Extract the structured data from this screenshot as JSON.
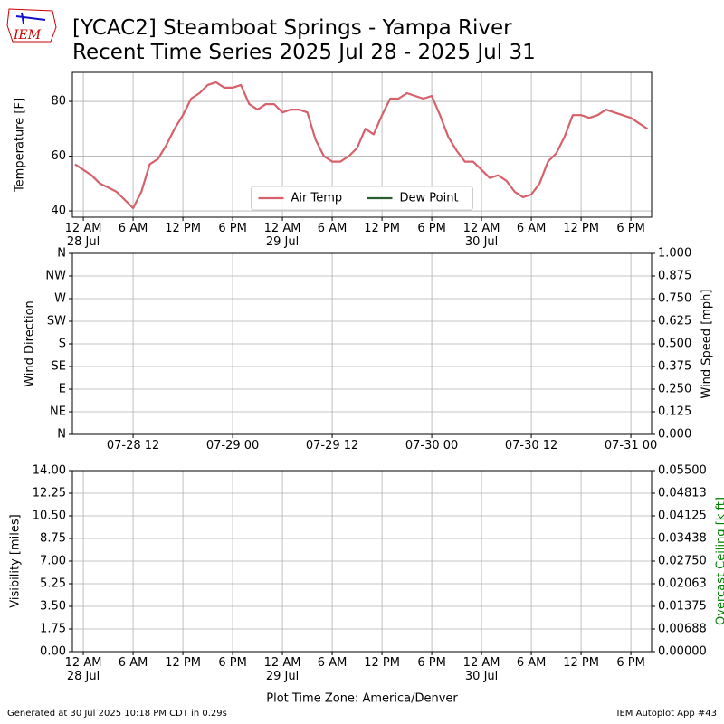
{
  "title": [
    "[YCAC2] Steamboat Springs - Yampa River",
    "Recent Time Series 2025 Jul 28 - 2025 Jul 31"
  ],
  "logo_text": "IEM",
  "footer_left": "Generated at 30 Jul 2025 10:18 PM CDT in 0.29s",
  "footer_right": "IEM Autoplot App #43",
  "chart_data": [
    {
      "type": "line",
      "ylabel": "Temperature [F]",
      "xlim": [
        "2025-07-27T22:41",
        "2025-07-30T20:30"
      ],
      "xticks": [
        {
          "value": "2025-07-28T00:00",
          "label": "12 AM\n28 Jul"
        },
        {
          "value": "2025-07-28T06:00",
          "label": "6 AM"
        },
        {
          "value": "2025-07-28T12:00",
          "label": "12 PM"
        },
        {
          "value": "2025-07-28T18:00",
          "label": "6 PM"
        },
        {
          "value": "2025-07-29T00:00",
          "label": "12 AM\n29 Jul"
        },
        {
          "value": "2025-07-29T06:00",
          "label": "6 AM"
        },
        {
          "value": "2025-07-29T12:00",
          "label": "12 PM"
        },
        {
          "value": "2025-07-29T18:00",
          "label": "6 PM"
        },
        {
          "value": "2025-07-30T00:00",
          "label": "12 AM\n30 Jul"
        },
        {
          "value": "2025-07-30T06:00",
          "label": "6 AM"
        },
        {
          "value": "2025-07-30T12:00",
          "label": "12 PM"
        },
        {
          "value": "2025-07-30T18:00",
          "label": "6 PM"
        }
      ],
      "ylim": [
        37.7,
        90.6
      ],
      "yticks": [
        40,
        60,
        80
      ],
      "grid": true,
      "legend": "lower center",
      "x": [
        "2025-07-27T23:00",
        "2025-07-28T00:00",
        "2025-07-28T01:00",
        "2025-07-28T02:00",
        "2025-07-28T03:00",
        "2025-07-28T04:00",
        "2025-07-28T05:00",
        "2025-07-28T06:00",
        "2025-07-28T07:00",
        "2025-07-28T08:00",
        "2025-07-28T09:00",
        "2025-07-28T10:00",
        "2025-07-28T11:00",
        "2025-07-28T12:00",
        "2025-07-28T13:00",
        "2025-07-28T14:00",
        "2025-07-28T15:00",
        "2025-07-28T16:00",
        "2025-07-28T17:00",
        "2025-07-28T18:00",
        "2025-07-28T19:00",
        "2025-07-28T20:00",
        "2025-07-28T21:00",
        "2025-07-28T22:00",
        "2025-07-28T23:00",
        "2025-07-29T00:00",
        "2025-07-29T01:00",
        "2025-07-29T02:00",
        "2025-07-29T03:00",
        "2025-07-29T04:00",
        "2025-07-29T05:00",
        "2025-07-29T06:00",
        "2025-07-29T07:00",
        "2025-07-29T08:00",
        "2025-07-29T09:00",
        "2025-07-29T10:00",
        "2025-07-29T11:00",
        "2025-07-29T12:00",
        "2025-07-29T13:00",
        "2025-07-29T14:00",
        "2025-07-29T15:00",
        "2025-07-29T16:00",
        "2025-07-29T17:00",
        "2025-07-29T18:00",
        "2025-07-29T19:00",
        "2025-07-29T20:00",
        "2025-07-29T21:00",
        "2025-07-29T22:00",
        "2025-07-29T23:00",
        "2025-07-30T00:00",
        "2025-07-30T01:00",
        "2025-07-30T02:00",
        "2025-07-30T03:00",
        "2025-07-30T04:00",
        "2025-07-30T05:00",
        "2025-07-30T06:00",
        "2025-07-30T07:00",
        "2025-07-30T08:00",
        "2025-07-30T09:00",
        "2025-07-30T10:00",
        "2025-07-30T11:00",
        "2025-07-30T12:00",
        "2025-07-30T13:00",
        "2025-07-30T14:00",
        "2025-07-30T15:00",
        "2025-07-30T16:00",
        "2025-07-30T17:00",
        "2025-07-30T18:00",
        "2025-07-30T19:00",
        "2025-07-30T20:00"
      ],
      "series": [
        {
          "name": "Air Temp",
          "color": "#d6616b",
          "values": [
            57,
            55,
            53,
            50,
            48.5,
            47,
            44,
            41,
            47,
            57,
            59,
            64,
            70,
            75,
            81,
            83,
            86,
            87,
            85,
            85,
            86,
            79,
            77,
            79,
            79,
            76,
            77,
            77,
            76,
            66,
            60,
            58,
            58,
            60,
            63,
            70,
            68,
            75,
            81,
            81,
            83,
            82,
            81,
            82,
            75,
            67,
            62,
            58,
            58,
            55,
            52,
            53,
            51,
            47,
            45,
            46,
            50,
            58,
            61,
            67,
            75,
            75,
            74,
            75,
            77,
            76,
            75,
            74,
            72,
            70
          ]
        },
        {
          "name": "Dew Point",
          "color": "#2e5e2e",
          "values": [
            null,
            null,
            null,
            null,
            null,
            null,
            null,
            null,
            null,
            null,
            null,
            null,
            null,
            null,
            null,
            null,
            null,
            null,
            null,
            null,
            null,
            null,
            null,
            null,
            null,
            null,
            null,
            null,
            null,
            null,
            null,
            null,
            null,
            null,
            null,
            null,
            null,
            null,
            null,
            null,
            null,
            null,
            null,
            null,
            null,
            null,
            null,
            null,
            null,
            null,
            null,
            null,
            null,
            null,
            null,
            null,
            null,
            null,
            null,
            null,
            null,
            null,
            null,
            null,
            null,
            null,
            null,
            null,
            null,
            null
          ]
        }
      ]
    },
    {
      "type": "scatter",
      "ylabel": "Wind Direction",
      "y2label": "Wind Speed [mph]",
      "xlim": [
        "2025-07-28T04:41",
        "2025-07-31T02:30"
      ],
      "xticks": [
        {
          "value": "2025-07-28T12:00",
          "label": "07-28 12"
        },
        {
          "value": "2025-07-29T00:00",
          "label": "07-29 00"
        },
        {
          "value": "2025-07-29T12:00",
          "label": "07-29 12"
        },
        {
          "value": "2025-07-30T00:00",
          "label": "07-30 00"
        },
        {
          "value": "2025-07-30T12:00",
          "label": "07-30 12"
        },
        {
          "value": "2025-07-31T00:00",
          "label": "07-31 00"
        }
      ],
      "ylim": [
        0,
        360
      ],
      "yticks": [
        {
          "value": 0,
          "label": "N"
        },
        {
          "value": 45,
          "label": "NE"
        },
        {
          "value": 90,
          "label": "E"
        },
        {
          "value": 135,
          "label": "SE"
        },
        {
          "value": 180,
          "label": "S"
        },
        {
          "value": 225,
          "label": "SW"
        },
        {
          "value": 270,
          "label": "W"
        },
        {
          "value": 315,
          "label": "NW"
        },
        {
          "value": 360,
          "label": "N"
        }
      ],
      "y2lim": [
        0,
        1
      ],
      "y2ticks": [
        {
          "value": 0,
          "label": "0.000"
        },
        0.125,
        {
          "value": 0.25,
          "label": "0.250"
        },
        0.375,
        {
          "value": 0.5,
          "label": "0.500"
        },
        0.625,
        {
          "value": 0.75,
          "label": "0.750"
        },
        0.875,
        {
          "value": 1,
          "label": "1.000"
        }
      ],
      "grid": true
    },
    {
      "type": "line",
      "ylabel": "Visibility [miles]",
      "y2label": "Overcast Ceiling [k ft]",
      "y2label_color": "#008000",
      "xlabel": "Plot Time Zone: America/Denver",
      "xlim": [
        "2025-07-27T22:41",
        "2025-07-30T20:30"
      ],
      "xticks": [
        {
          "value": "2025-07-28T00:00",
          "label": "12 AM\n28 Jul"
        },
        {
          "value": "2025-07-28T06:00",
          "label": "6 AM"
        },
        {
          "value": "2025-07-28T12:00",
          "label": "12 PM"
        },
        {
          "value": "2025-07-28T18:00",
          "label": "6 PM"
        },
        {
          "value": "2025-07-29T00:00",
          "label": "12 AM\n29 Jul"
        },
        {
          "value": "2025-07-29T06:00",
          "label": "6 AM"
        },
        {
          "value": "2025-07-29T12:00",
          "label": "12 PM"
        },
        {
          "value": "2025-07-29T18:00",
          "label": "6 PM"
        },
        {
          "value": "2025-07-30T00:00",
          "label": "12 AM\n30 Jul"
        },
        {
          "value": "2025-07-30T06:00",
          "label": "6 AM"
        },
        {
          "value": "2025-07-30T12:00",
          "label": "12 PM"
        },
        {
          "value": "2025-07-30T18:00",
          "label": "6 PM"
        }
      ],
      "ylim": [
        0,
        14
      ],
      "yticks": [
        {
          "value": 0,
          "label": "0.00"
        },
        1.75,
        {
          "value": 3.5,
          "label": "3.50"
        },
        5.25,
        {
          "value": 7,
          "label": "7.00"
        },
        8.75,
        {
          "value": 10.5,
          "label": "10.50"
        },
        12.25,
        {
          "value": 14,
          "label": "14.00"
        }
      ],
      "y2lim": [
        0,
        0.055
      ],
      "y2ticks": [
        {
          "value": 0,
          "label": "0.00000"
        },
        {
          "value": 0.006875,
          "label": "0.00688"
        },
        0.01375,
        {
          "value": 0.020625,
          "label": "0.02063"
        },
        {
          "value": 0.0275,
          "label": "0.02750"
        },
        {
          "value": 0.034375,
          "label": "0.03438"
        },
        0.04125,
        {
          "value": 0.048125,
          "label": "0.04813"
        },
        {
          "value": 0.055,
          "label": "0.05500"
        }
      ],
      "grid": true
    }
  ]
}
